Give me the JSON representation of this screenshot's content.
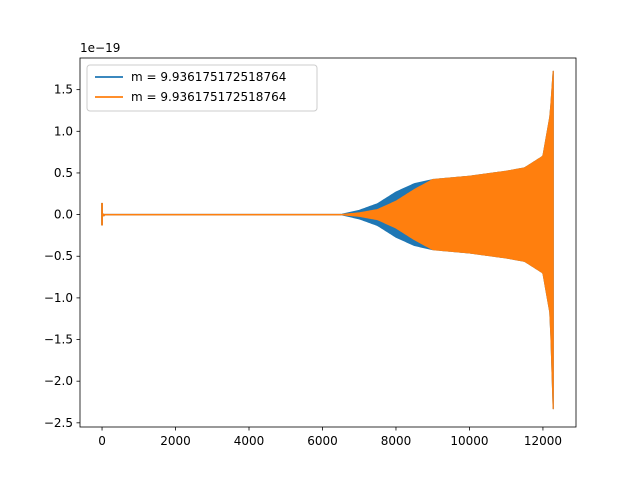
{
  "chart_data": {
    "type": "line",
    "title": "",
    "xlabel": "",
    "ylabel": "",
    "offset_text": "1e−19",
    "xlim": [
      -600,
      12900
    ],
    "ylim": [
      -2.55,
      1.88
    ],
    "xticks": [
      0,
      2000,
      4000,
      6000,
      8000,
      10000,
      12000
    ],
    "xtick_labels": [
      "0",
      "2000",
      "4000",
      "6000",
      "8000",
      "10000",
      "12000"
    ],
    "yticks": [
      1.5,
      1.0,
      0.5,
      0.0,
      -0.5,
      -1.0,
      -1.5,
      -2.0,
      -2.5
    ],
    "ytick_labels": [
      "1.5",
      "1.0",
      "0.5",
      "0.0",
      "−0.5",
      "−1.0",
      "−1.5",
      "−2.0",
      "−2.5"
    ],
    "legend_position": "upper-left",
    "grid": false,
    "series": [
      {
        "name": "m = 9.936175172518764",
        "color": "#1f77b4",
        "envelope_x": [
          0,
          6500,
          7000,
          7500,
          8000,
          8500,
          9000,
          10000,
          11000,
          11500,
          12000,
          12200,
          12280
        ],
        "envelope_upper": [
          0.0,
          0.0,
          0.05,
          0.13,
          0.27,
          0.37,
          0.42,
          0.46,
          0.52,
          0.56,
          0.7,
          1.2,
          1.72
        ],
        "envelope_lower": [
          0.0,
          0.0,
          -0.05,
          -0.13,
          -0.27,
          -0.37,
          -0.42,
          -0.46,
          -0.52,
          -0.56,
          -0.7,
          -1.2,
          -2.33
        ]
      },
      {
        "name": "m = 9.936175172518764",
        "color": "#ff7f0e",
        "envelope_x": [
          0,
          6500,
          7000,
          7500,
          8000,
          8500,
          9000,
          10000,
          11000,
          11500,
          12000,
          12200,
          12280
        ],
        "envelope_upper": [
          0.0,
          0.0,
          0.02,
          0.06,
          0.16,
          0.3,
          0.42,
          0.46,
          0.52,
          0.56,
          0.7,
          1.2,
          1.72
        ],
        "envelope_lower": [
          0.0,
          0.0,
          -0.02,
          -0.06,
          -0.16,
          -0.3,
          -0.42,
          -0.46,
          -0.52,
          -0.56,
          -0.7,
          -1.2,
          -2.33
        ]
      }
    ],
    "initial_spike": {
      "x": 0,
      "upper": 0.14,
      "lower": -0.13
    }
  }
}
